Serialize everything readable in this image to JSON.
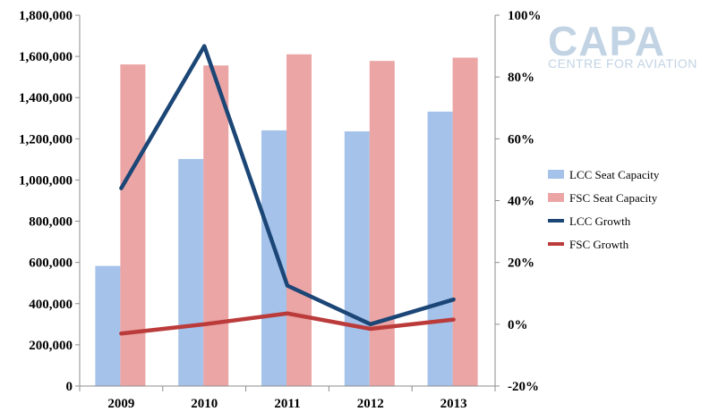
{
  "chart_data": {
    "type": "bar",
    "categories": [
      "2009",
      "2010",
      "2011",
      "2012",
      "2013"
    ],
    "series": [
      {
        "name": "LCC Seat Capacity",
        "kind": "bar",
        "axis": "left",
        "color": "#a4c2ea",
        "values": [
          583000,
          1102000,
          1241000,
          1236000,
          1332000
        ]
      },
      {
        "name": "FSC Seat Capacity",
        "kind": "bar",
        "axis": "left",
        "color": "#eba5a5",
        "values": [
          1561000,
          1556000,
          1610000,
          1578000,
          1594000
        ]
      },
      {
        "name": "LCC Growth",
        "kind": "line",
        "axis": "right",
        "color": "#1b4676",
        "values": [
          44,
          90,
          12.5,
          0,
          8
        ]
      },
      {
        "name": "FSC Growth",
        "kind": "line",
        "axis": "right",
        "color": "#bb3b3b",
        "values": [
          -3,
          0,
          3.5,
          -1.5,
          1.5
        ]
      }
    ],
    "y_left": {
      "min": 0,
      "max": 1800000,
      "step": 200000,
      "ticks": [
        "0",
        "200,000",
        "400,000",
        "600,000",
        "800,000",
        "1,000,000",
        "1,200,000",
        "1,400,000",
        "1,600,000",
        "1,800,000"
      ]
    },
    "y_right": {
      "min": -20,
      "max": 100,
      "step": 20,
      "ticks": [
        "-20%",
        "0%",
        "20%",
        "40%",
        "60%",
        "80%",
        "100%"
      ]
    },
    "grid": false,
    "legend_position": "right"
  },
  "watermark": {
    "main": "CAPA",
    "sub": "CENTRE FOR AVIATION"
  }
}
